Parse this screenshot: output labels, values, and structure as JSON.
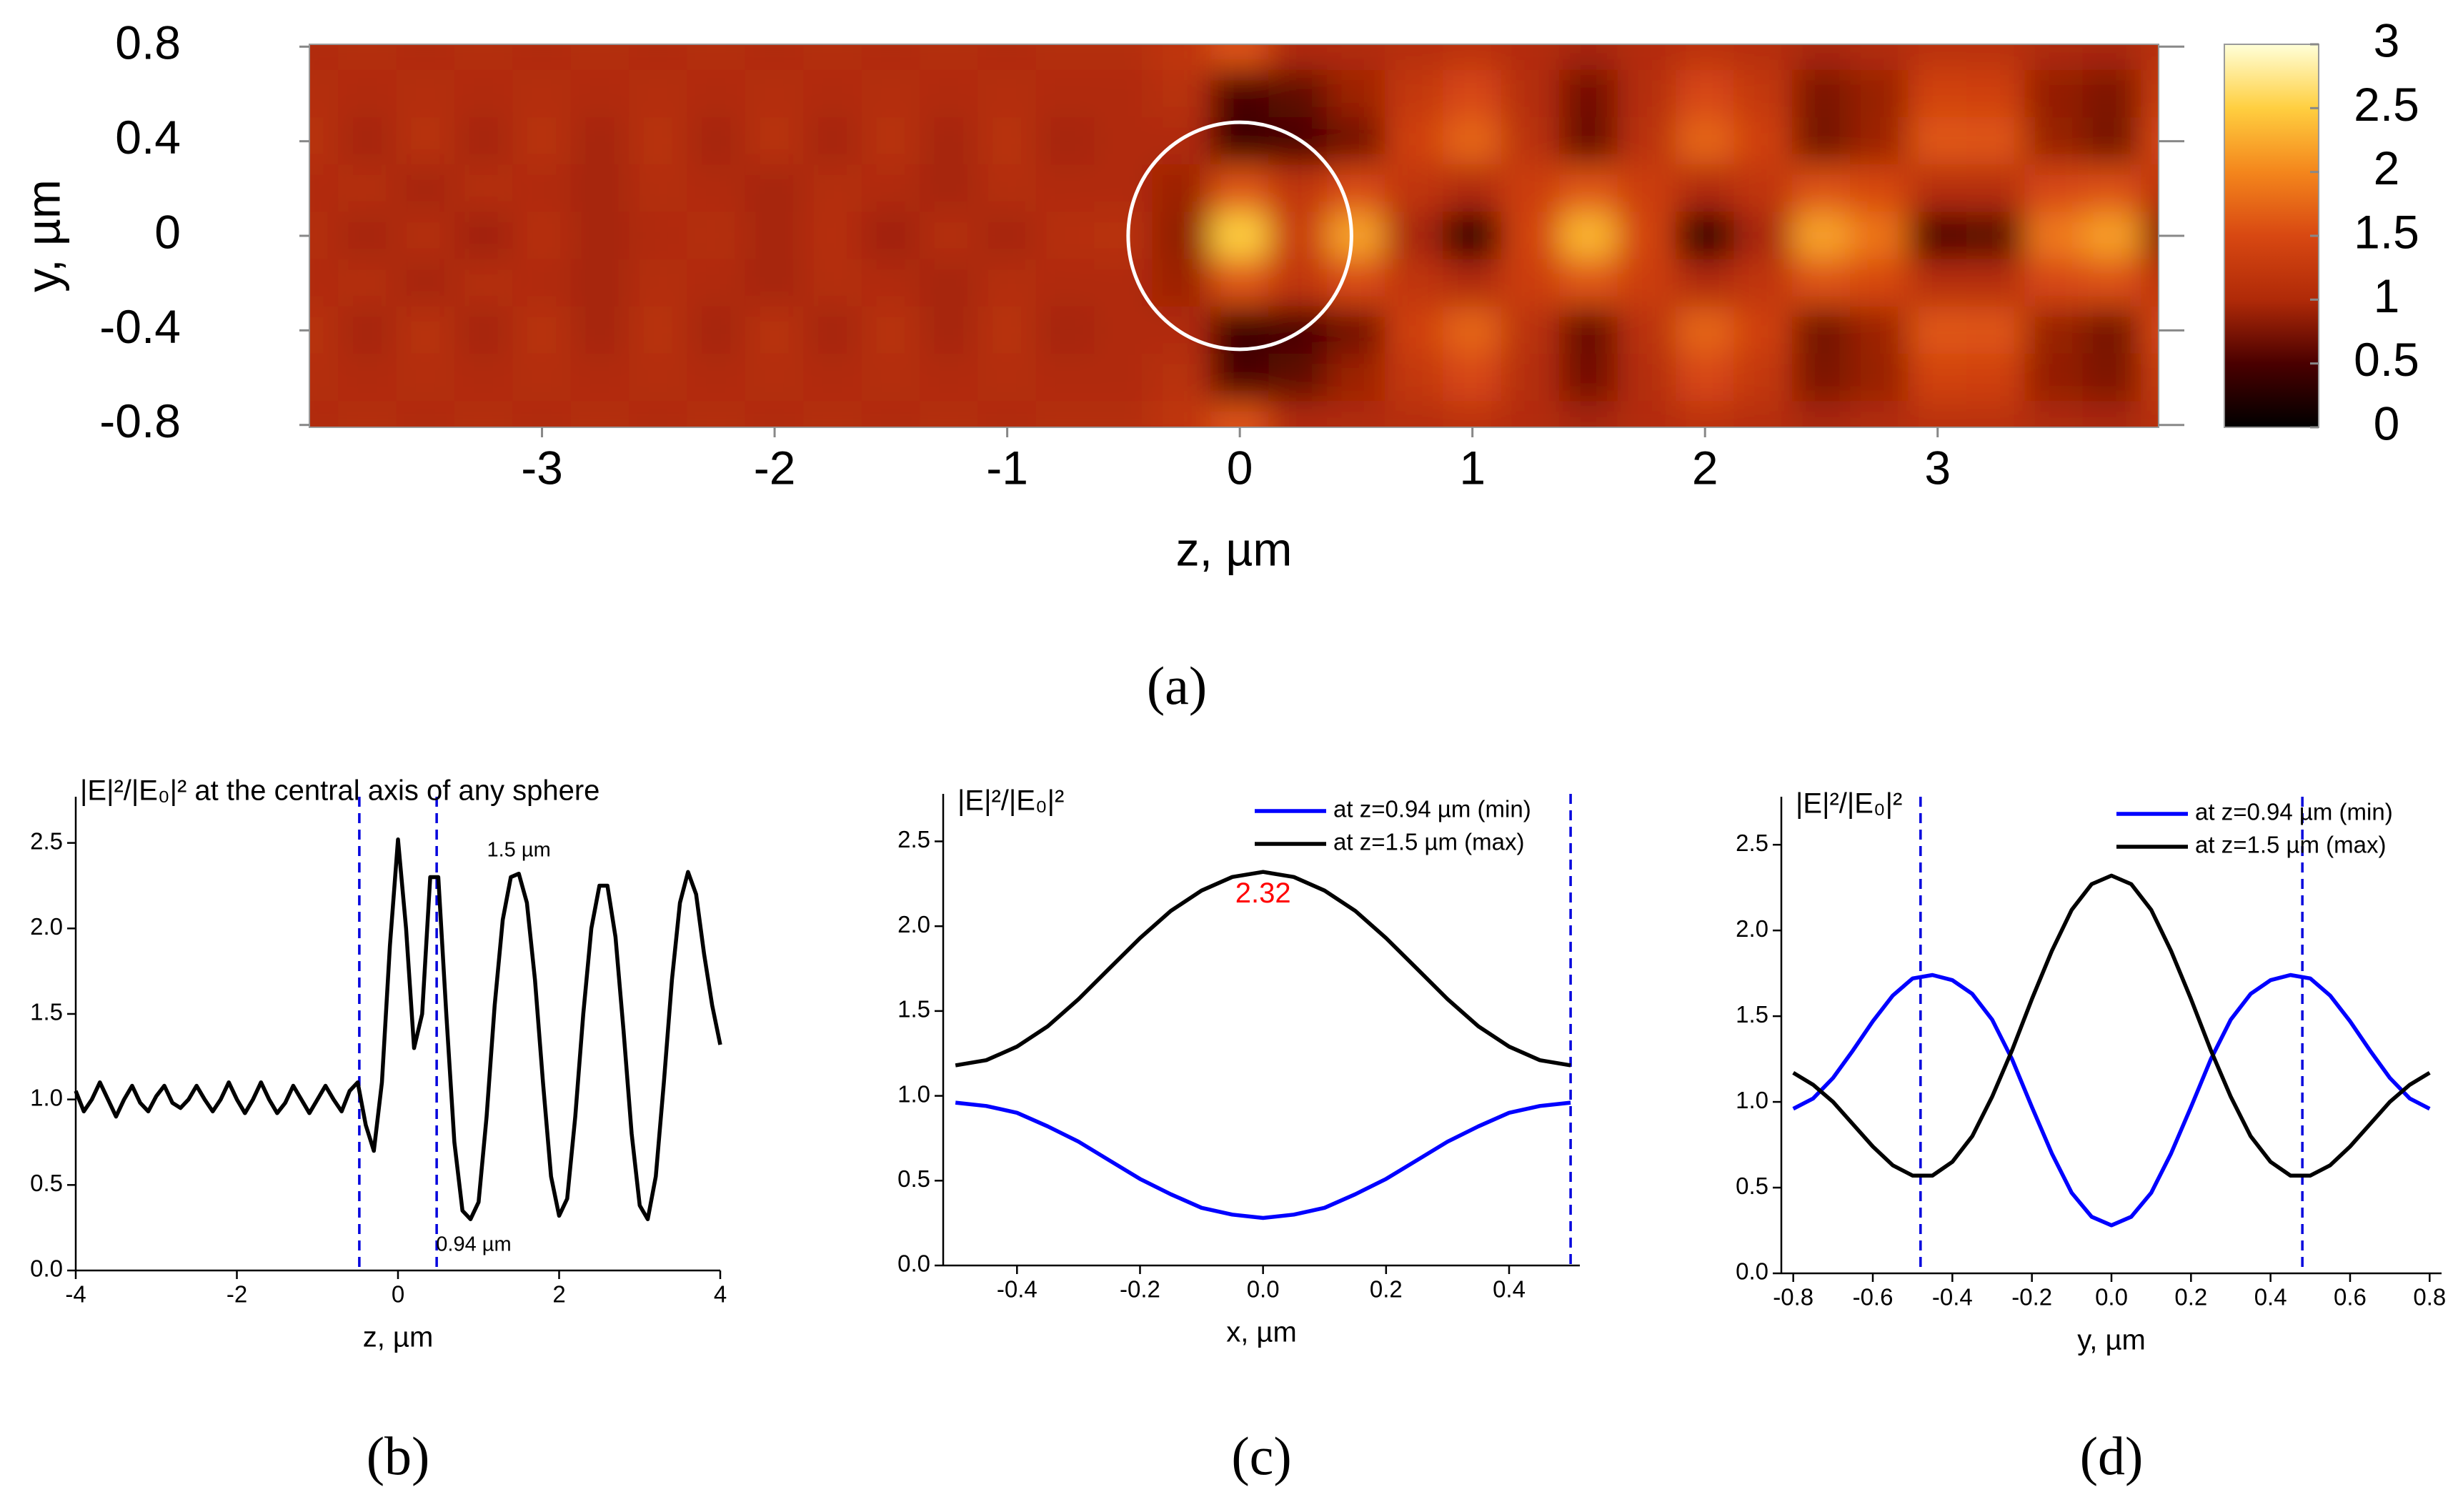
{
  "chart_data": [
    {
      "type": "heatmap",
      "caption": "(a)",
      "xlabel": "z, µm",
      "ylabel": "y, µm",
      "x": [
        -4,
        -3.75,
        -3.5,
        -3.25,
        -3,
        -2.75,
        -2.5,
        -2.25,
        -2,
        -1.75,
        -1.5,
        -1.25,
        -1,
        -0.75,
        -0.5,
        -0.25,
        0,
        0.25,
        0.5,
        0.75,
        1,
        1.25,
        1.5,
        1.75,
        2,
        2.25,
        2.5,
        2.75,
        3,
        3.25,
        3.5,
        3.75,
        4
      ],
      "y": [
        0.8,
        0.6,
        0.4,
        0.2,
        0,
        -0.2,
        -0.4,
        -0.6,
        -0.8
      ],
      "z": [
        [
          1.0,
          1.05,
          1.0,
          1.05,
          1.0,
          1.05,
          1.0,
          1.05,
          1.0,
          1.05,
          1.0,
          1.05,
          1.0,
          1.05,
          1.05,
          1.2,
          1.6,
          1.0,
          1.0,
          1.08,
          1.15,
          1.04,
          0.95,
          1.04,
          1.15,
          1.08,
          0.96,
          1.0,
          1.13,
          1.12,
          0.99,
          0.96,
          1.1
        ],
        [
          1.05,
          1.0,
          1.05,
          1.0,
          1.05,
          1.0,
          1.05,
          1.0,
          1.05,
          1.0,
          1.05,
          1.0,
          1.05,
          1.0,
          1.0,
          1.1,
          0.5,
          0.6,
          0.9,
          1.24,
          1.49,
          1.05,
          0.7,
          1.05,
          1.49,
          1.24,
          0.74,
          0.88,
          1.41,
          1.39,
          0.86,
          0.75,
          1.3
        ],
        [
          1.1,
          0.95,
          1.1,
          0.95,
          1.1,
          0.95,
          1.1,
          0.95,
          1.1,
          0.95,
          1.1,
          0.95,
          1.1,
          0.95,
          1.0,
          1.0,
          0.4,
          0.5,
          0.7,
          1.39,
          1.73,
          1.13,
          0.65,
          1.13,
          1.73,
          1.39,
          0.71,
          0.9,
          1.62,
          1.6,
          0.88,
          0.72,
          1.48
        ],
        [
          1.0,
          1.05,
          0.95,
          1.05,
          1.0,
          0.95,
          1.05,
          1.0,
          0.95,
          1.05,
          1.0,
          0.95,
          1.05,
          1.0,
          1.0,
          0.9,
          1.6,
          1.2,
          1.5,
          1.2,
          1.01,
          1.34,
          1.6,
          1.34,
          1.01,
          1.2,
          1.57,
          1.47,
          1.07,
          1.08,
          1.48,
          1.56,
          1.15
        ],
        [
          1.05,
          0.95,
          1.05,
          0.92,
          1.08,
          0.95,
          1.0,
          1.05,
          0.95,
          1.08,
          0.92,
          1.05,
          0.95,
          1.08,
          1.1,
          0.85,
          2.5,
          1.3,
          2.2,
          0.96,
          0.33,
          1.42,
          2.32,
          1.42,
          0.33,
          0.96,
          2.19,
          1.85,
          0.53,
          0.58,
          1.89,
          2.17,
          0.8
        ],
        [
          1.0,
          1.05,
          0.95,
          1.05,
          1.0,
          0.95,
          1.05,
          1.0,
          0.95,
          1.05,
          1.0,
          0.95,
          1.05,
          1.0,
          1.0,
          0.9,
          1.6,
          1.2,
          1.5,
          1.2,
          1.01,
          1.34,
          1.6,
          1.34,
          1.01,
          1.2,
          1.57,
          1.47,
          1.07,
          1.08,
          1.48,
          1.56,
          1.15
        ],
        [
          1.1,
          0.95,
          1.1,
          0.95,
          1.1,
          0.95,
          1.1,
          0.95,
          1.1,
          0.95,
          1.1,
          0.95,
          1.1,
          0.95,
          1.0,
          1.0,
          0.4,
          0.5,
          0.7,
          1.39,
          1.73,
          1.13,
          0.65,
          1.13,
          1.73,
          1.39,
          0.71,
          0.9,
          1.62,
          1.6,
          0.88,
          0.72,
          1.48
        ],
        [
          1.05,
          1.0,
          1.05,
          1.0,
          1.05,
          1.0,
          1.05,
          1.0,
          1.05,
          1.0,
          1.05,
          1.0,
          1.05,
          1.0,
          1.0,
          1.1,
          0.5,
          0.6,
          0.9,
          1.24,
          1.49,
          1.05,
          0.7,
          1.05,
          1.49,
          1.24,
          0.74,
          0.88,
          1.41,
          1.39,
          0.86,
          0.75,
          1.3
        ],
        [
          1.0,
          1.05,
          1.0,
          1.05,
          1.0,
          1.05,
          1.0,
          1.05,
          1.0,
          1.05,
          1.0,
          1.05,
          1.0,
          1.05,
          1.05,
          1.2,
          1.6,
          1.0,
          1.0,
          1.08,
          1.15,
          1.04,
          0.95,
          1.04,
          1.15,
          1.08,
          0.96,
          1.0,
          1.13,
          1.12,
          0.99,
          0.96,
          1.1
        ]
      ],
      "xlim": [
        -4,
        3.95
      ],
      "ylim": [
        -0.81,
        0.81
      ],
      "xticks": [
        -3,
        -2,
        -1,
        0,
        1,
        2,
        3
      ],
      "yticks": [
        0.8,
        0.4,
        0,
        -0.4,
        -0.8
      ],
      "zlim": [
        0,
        3
      ],
      "zticks": [
        0,
        0.5,
        1,
        1.5,
        2,
        2.5,
        3
      ],
      "colors": [
        "#000000",
        "#4a0000",
        "#b02a08",
        "#d84812",
        "#f4861c",
        "#ffcf40",
        "#ffffd8"
      ],
      "shapes": [
        {
          "type": "circle",
          "cx": 0,
          "cy": 0,
          "r": 0.48,
          "color": "#ffffff"
        }
      ]
    },
    {
      "type": "line",
      "caption": "(b)",
      "title": "|E|²/|E₀|² at the central axis of any sphere",
      "xlabel": "z, µm",
      "x": [
        -4,
        -3.9,
        -3.8,
        -3.7,
        -3.6,
        -3.5,
        -3.4,
        -3.3,
        -3.2,
        -3.1,
        -3,
        -2.9,
        -2.8,
        -2.7,
        -2.6,
        -2.5,
        -2.4,
        -2.3,
        -2.2,
        -2.1,
        -2,
        -1.9,
        -1.8,
        -1.7,
        -1.6,
        -1.5,
        -1.4,
        -1.3,
        -1.2,
        -1.1,
        -1,
        -0.9,
        -0.8,
        -0.7,
        -0.6,
        -0.5,
        -0.4,
        -0.3,
        -0.2,
        -0.1,
        0,
        0.1,
        0.2,
        0.3,
        0.4,
        0.5,
        0.6,
        0.7,
        0.8,
        0.9,
        1,
        1.1,
        1.2,
        1.3,
        1.4,
        1.5,
        1.6,
        1.7,
        1.8,
        1.9,
        2,
        2.1,
        2.2,
        2.3,
        2.4,
        2.5,
        2.6,
        2.7,
        2.8,
        2.9,
        3,
        3.1,
        3.2,
        3.3,
        3.4,
        3.5,
        3.6,
        3.7,
        3.8,
        3.9,
        4
      ],
      "series": [
        {
          "color": "#000000",
          "values": [
            1.05,
            0.93,
            1.0,
            1.1,
            1.0,
            0.9,
            1.0,
            1.08,
            0.98,
            0.93,
            1.02,
            1.08,
            0.98,
            0.95,
            1.0,
            1.08,
            1.0,
            0.93,
            1.0,
            1.1,
            1.0,
            0.92,
            1.0,
            1.1,
            1.0,
            0.92,
            0.98,
            1.08,
            1.0,
            0.92,
            1.0,
            1.08,
            1.0,
            0.93,
            1.05,
            1.1,
            0.85,
            0.7,
            1.1,
            1.9,
            2.52,
            2.0,
            1.3,
            1.5,
            2.3,
            2.3,
            1.5,
            0.75,
            0.35,
            0.3,
            0.4,
            0.9,
            1.55,
            2.05,
            2.3,
            2.32,
            2.15,
            1.7,
            1.1,
            0.55,
            0.32,
            0.42,
            0.9,
            1.5,
            2.0,
            2.25,
            2.25,
            1.95,
            1.4,
            0.8,
            0.38,
            0.3,
            0.55,
            1.1,
            1.7,
            2.15,
            2.33,
            2.2,
            1.85,
            1.55,
            1.32
          ]
        }
      ],
      "vlines": [
        -0.48,
        0.48
      ],
      "vline_color": "#0000dd",
      "annotations": [
        {
          "text": "1.5 µm",
          "x": 1.5,
          "y": 2.32,
          "position": "above",
          "color": "#000000"
        },
        {
          "text": "0.94 µm",
          "x": 0.94,
          "y": 0.28,
          "position": "below",
          "color": "#000000"
        }
      ],
      "xlim": [
        -4,
        4
      ],
      "ylim": [
        0,
        2.77
      ],
      "xticks": [
        -4,
        -2,
        0,
        2,
        4
      ],
      "yticks": [
        {
          "value": 0,
          "label": "0.0"
        },
        0.5,
        {
          "value": 1,
          "label": "1.0"
        },
        1.5,
        {
          "value": 2,
          "label": "2.0"
        },
        2.5
      ]
    },
    {
      "type": "line",
      "caption": "(c)",
      "ylabel": "|E|²/|E₀|²",
      "xlabel": "x, µm",
      "x": [
        -0.5,
        -0.45,
        -0.4,
        -0.35,
        -0.3,
        -0.25,
        -0.2,
        -0.15,
        -0.1,
        -0.05,
        0,
        0.05,
        0.1,
        0.15,
        0.2,
        0.25,
        0.3,
        0.35,
        0.4,
        0.45,
        0.5
      ],
      "series": [
        {
          "name": "at z=0.94 µm (min)",
          "color": "#0000ff",
          "values": [
            0.96,
            0.94,
            0.9,
            0.82,
            0.73,
            0.62,
            0.51,
            0.42,
            0.34,
            0.3,
            0.28,
            0.3,
            0.34,
            0.42,
            0.51,
            0.62,
            0.73,
            0.82,
            0.9,
            0.94,
            0.96
          ]
        },
        {
          "name": "at z=1.5 µm (max)",
          "color": "#000000",
          "values": [
            1.18,
            1.21,
            1.29,
            1.41,
            1.57,
            1.75,
            1.93,
            2.09,
            2.21,
            2.29,
            2.32,
            2.29,
            2.21,
            2.09,
            1.93,
            1.75,
            1.57,
            1.41,
            1.29,
            1.21,
            1.18
          ]
        }
      ],
      "vlines": [
        0.5
      ],
      "vline_color": "#0000dd",
      "annotations": [
        {
          "text": "2.32",
          "x": 0,
          "y": 2.32,
          "position": "below",
          "color": "#ff0000"
        }
      ],
      "legend": "upper right",
      "xlim": [
        -0.52,
        0.515
      ],
      "ylim": [
        0,
        2.78
      ],
      "xticks": [
        -0.4,
        -0.2,
        {
          "value": 0,
          "label": "0.0"
        },
        0.2,
        0.4
      ],
      "yticks": [
        {
          "value": 0,
          "label": "0.0"
        },
        0.5,
        {
          "value": 1,
          "label": "1.0"
        },
        1.5,
        {
          "value": 2,
          "label": "2.0"
        },
        2.5
      ]
    },
    {
      "type": "line",
      "caption": "(d)",
      "ylabel": "|E|²/|E₀|²",
      "xlabel": "y, µm",
      "x": [
        -0.8,
        -0.75,
        -0.7,
        -0.65,
        -0.6,
        -0.55,
        -0.5,
        -0.45,
        -0.4,
        -0.35,
        -0.3,
        -0.25,
        -0.2,
        -0.15,
        -0.1,
        -0.05,
        0,
        0.05,
        0.1,
        0.15,
        0.2,
        0.25,
        0.3,
        0.35,
        0.4,
        0.45,
        0.5,
        0.55,
        0.6,
        0.65,
        0.7,
        0.75,
        0.8
      ],
      "series": [
        {
          "name": "at z=0.94 µm (min)",
          "color": "#0000ff",
          "values": [
            0.96,
            1.02,
            1.14,
            1.3,
            1.47,
            1.62,
            1.72,
            1.74,
            1.71,
            1.63,
            1.48,
            1.25,
            0.97,
            0.7,
            0.47,
            0.33,
            0.28,
            0.33,
            0.47,
            0.7,
            0.97,
            1.25,
            1.48,
            1.63,
            1.71,
            1.74,
            1.72,
            1.62,
            1.47,
            1.3,
            1.14,
            1.02,
            0.96
          ]
        },
        {
          "name": "at z=1.5 µm (max)",
          "color": "#000000",
          "values": [
            1.17,
            1.1,
            1.0,
            0.87,
            0.74,
            0.63,
            0.57,
            0.57,
            0.65,
            0.8,
            1.03,
            1.3,
            1.6,
            1.88,
            2.12,
            2.27,
            2.32,
            2.27,
            2.12,
            1.88,
            1.6,
            1.3,
            1.03,
            0.8,
            0.65,
            0.57,
            0.57,
            0.63,
            0.74,
            0.87,
            1.0,
            1.1,
            1.17
          ]
        }
      ],
      "vlines": [
        -0.48,
        0.48
      ],
      "vline_color": "#0000dd",
      "legend": "upper right",
      "xlim": [
        -0.83,
        0.83
      ],
      "ylim": [
        0,
        2.78
      ],
      "xticks": [
        -0.8,
        -0.6,
        -0.4,
        -0.2,
        {
          "value": 0,
          "label": "0.0"
        },
        0.2,
        0.4,
        0.6,
        0.8
      ],
      "yticks": [
        {
          "value": 0,
          "label": "0.0"
        },
        0.5,
        {
          "value": 1,
          "label": "1.0"
        },
        1.5,
        {
          "value": 2,
          "label": "2.0"
        },
        2.5
      ]
    }
  ]
}
